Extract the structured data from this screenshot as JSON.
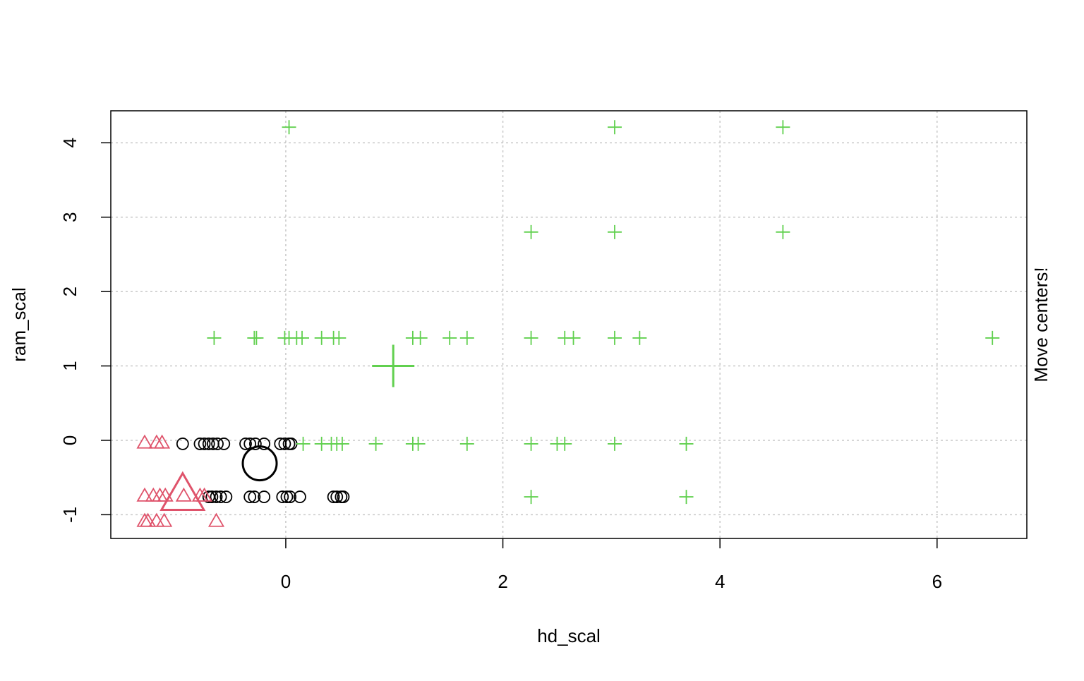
{
  "chart_data": {
    "type": "scatter",
    "xlabel": "hd_scal",
    "ylabel": "ram_scal",
    "side_text": "Move centers!",
    "xlim": [
      -1.612,
      6.827
    ],
    "ylim": [
      -1.319,
      4.43
    ],
    "xticks": [
      0,
      2,
      4,
      6
    ],
    "yticks": [
      -1,
      0,
      1,
      2,
      3,
      4
    ],
    "grid": true,
    "series": [
      {
        "color": "#000000",
        "marker": "circle",
        "x": [
          -0.95,
          -0.79,
          -0.75,
          -0.71,
          -0.67,
          -0.63,
          -0.57,
          -0.37,
          -0.33,
          -0.28,
          -0.2,
          -0.05,
          -0.01,
          0.03,
          0.05,
          -0.71,
          -0.68,
          -0.64,
          -0.6,
          -0.55,
          -0.33,
          -0.29,
          -0.2,
          -0.03,
          0.01,
          0.04,
          0.13,
          0.44,
          0.47,
          0.51,
          0.53
        ],
        "y": [
          -0.047,
          -0.047,
          -0.047,
          -0.047,
          -0.047,
          -0.047,
          -0.047,
          -0.047,
          -0.047,
          -0.047,
          -0.047,
          -0.047,
          -0.047,
          -0.047,
          -0.047,
          -0.76,
          -0.76,
          -0.76,
          -0.76,
          -0.76,
          -0.76,
          -0.76,
          -0.76,
          -0.76,
          -0.76,
          -0.76,
          -0.76,
          -0.76,
          -0.76,
          -0.76,
          -0.76
        ],
        "center": [
          -0.24,
          -0.31
        ]
      },
      {
        "color": "#DF536B",
        "marker": "triangle",
        "x": [
          -1.3,
          -1.19,
          -1.14,
          -1.3,
          -1.22,
          -1.16,
          -1.11,
          -0.94,
          -0.79,
          -0.75,
          -1.3,
          -1.27,
          -1.19,
          -1.12,
          -0.64
        ],
        "y": [
          -0.047,
          -0.047,
          -0.047,
          -0.76,
          -0.76,
          -0.76,
          -0.76,
          -0.76,
          -0.76,
          -0.76,
          -1.1,
          -1.1,
          -1.1,
          -1.1,
          -1.1
        ],
        "center": [
          -0.95,
          -0.77
        ]
      },
      {
        "color": "#61D04F",
        "marker": "plus",
        "x": [
          0.03,
          3.03,
          4.58,
          2.26,
          3.03,
          4.58,
          -0.66,
          -0.29,
          -0.27,
          -0.01,
          0.03,
          0.1,
          0.15,
          0.33,
          0.44,
          0.49,
          1.17,
          1.24,
          1.51,
          1.67,
          2.26,
          2.57,
          2.65,
          3.03,
          3.26,
          6.51,
          0.16,
          0.33,
          0.42,
          0.47,
          0.52,
          0.83,
          1.17,
          1.22,
          1.67,
          2.26,
          2.5,
          2.57,
          3.03,
          3.69,
          2.26,
          3.69
        ],
        "y": [
          4.21,
          4.21,
          4.21,
          2.8,
          2.8,
          2.8,
          1.376,
          1.376,
          1.376,
          1.376,
          1.376,
          1.376,
          1.376,
          1.376,
          1.376,
          1.376,
          1.376,
          1.376,
          1.376,
          1.376,
          1.376,
          1.376,
          1.376,
          1.376,
          1.376,
          1.376,
          -0.047,
          -0.047,
          -0.047,
          -0.047,
          -0.047,
          -0.047,
          -0.047,
          -0.047,
          -0.047,
          -0.047,
          -0.047,
          -0.047,
          -0.047,
          -0.047,
          -0.76,
          -0.76
        ],
        "center": [
          0.99,
          1.0
        ]
      }
    ]
  }
}
